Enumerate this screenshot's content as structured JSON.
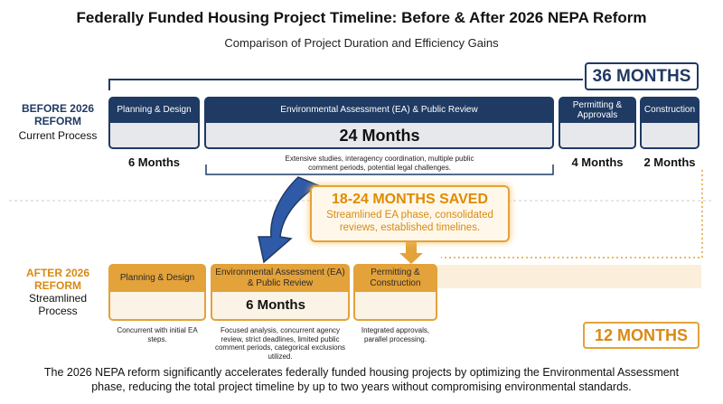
{
  "header": {
    "title": "Federally Funded Housing Project Timeline: Before & After 2026 NEPA Reform",
    "subtitle": "Comparison of Project Duration and Efficiency Gains"
  },
  "before": {
    "label": "BEFORE 2026 REFORM",
    "sublabel": "Current Process",
    "total": "36 MONTHS",
    "phases": [
      {
        "name": "Planning & Design",
        "duration": "6 Months"
      },
      {
        "name": "Environmental Assessment (EA) & Public Review",
        "duration": "24 Months",
        "note": "Extensive studies, interagency coordination, multiple public comment periods, potential legal challenges."
      },
      {
        "name": "Permitting & Approvals",
        "duration": "4 Months"
      },
      {
        "name": "Construction",
        "duration": "2 Months"
      }
    ]
  },
  "savings": {
    "title": "18-24 MONTHS SAVED",
    "text": "Streamlined EA phase, consolidated reviews, established timelines."
  },
  "after": {
    "label": "AFTER 2026 REFORM",
    "sublabel": "Streamlined Process",
    "total": "12 MONTHS",
    "phases": [
      {
        "name": "Planning & Design",
        "note": "Concurrent with initial EA steps."
      },
      {
        "name": "Environmental Assessment (EA) & Public Review",
        "duration": "6 Months",
        "note": "Focused analysis, concurrent agency review, strict deadlines, limited public comment periods, categorical exclusions utilized."
      },
      {
        "name": "Permitting & Construction",
        "note": "Integrated approvals, parallel processing."
      }
    ]
  },
  "footer": "The 2026 NEPA reform significantly accelerates federally funded housing projects by optimizing the Environmental Assessment phase, reducing the total project timeline by up to two years without compromising environmental standards."
}
